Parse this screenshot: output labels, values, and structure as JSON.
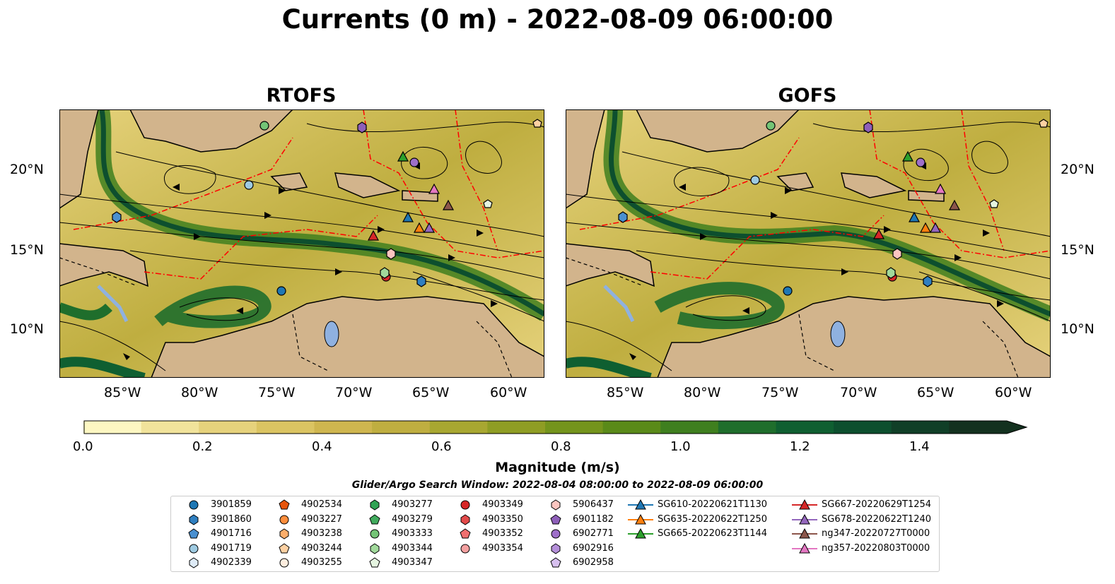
{
  "title": "Currents (0 m) - 2022-08-09 06:00:00",
  "panels": [
    {
      "title": "RTOFS"
    },
    {
      "title": "GOFS"
    }
  ],
  "lon_ticks": [
    "85°W",
    "80°W",
    "75°W",
    "70°W",
    "65°W",
    "60°W"
  ],
  "lat_ticks": [
    "20°N",
    "15°N",
    "10°N"
  ],
  "colorbar": {
    "label": "Magnitude (m/s)",
    "ticks": [
      "0.0",
      "0.2",
      "0.4",
      "0.6",
      "0.8",
      "1.0",
      "1.2",
      "1.4"
    ],
    "colors": [
      "#fdf7c2",
      "#f1e39b",
      "#e6d27c",
      "#dbc462",
      "#cfb64f",
      "#bfae40",
      "#a8a731",
      "#8f9d24",
      "#74941c",
      "#5a8a19",
      "#3f7f1f",
      "#1f6e2c",
      "#0f5f31",
      "#0d4f2e",
      "#103f27",
      "#13311f"
    ]
  },
  "search_window": "Glider/Argo Search Window: 2022-08-04 08:00:00 to 2022-08-09 06:00:00",
  "legend": {
    "columns": [
      [
        {
          "label": "3901859",
          "marker": "circle",
          "color": "#1f77b4"
        },
        {
          "label": "3901860",
          "marker": "hexagon",
          "color": "#2f7fc0"
        },
        {
          "label": "4901716",
          "marker": "pentagon",
          "color": "#4a90d0"
        },
        {
          "label": "4901719",
          "marker": "circle",
          "color": "#9ecae1"
        },
        {
          "label": "4902339",
          "marker": "hexagon",
          "color": "#deebf7"
        }
      ],
      [
        {
          "label": "4902534",
          "marker": "pentagon",
          "color": "#e6550d"
        },
        {
          "label": "4903227",
          "marker": "circle",
          "color": "#fd8d3c"
        },
        {
          "label": "4903238",
          "marker": "hexagon",
          "color": "#fdae6b"
        },
        {
          "label": "4903244",
          "marker": "pentagon",
          "color": "#fdd0a2"
        },
        {
          "label": "4903255",
          "marker": "circle",
          "color": "#feedde"
        }
      ],
      [
        {
          "label": "4903277",
          "marker": "hexagon",
          "color": "#31a354"
        },
        {
          "label": "4903279",
          "marker": "pentagon",
          "color": "#41ab5d"
        },
        {
          "label": "4903333",
          "marker": "circle",
          "color": "#74c476"
        },
        {
          "label": "4903344",
          "marker": "hexagon",
          "color": "#a1d99b"
        },
        {
          "label": "4903347",
          "marker": "pentagon",
          "color": "#e5f5e0"
        }
      ],
      [
        {
          "label": "4903349",
          "marker": "circle",
          "color": "#d62728"
        },
        {
          "label": "4903350",
          "marker": "hexagon",
          "color": "#e34a4a"
        },
        {
          "label": "4903352",
          "marker": "pentagon",
          "color": "#f07070"
        },
        {
          "label": "4903354",
          "marker": "circle",
          "color": "#f4a0a0"
        }
      ],
      [
        {
          "label": "5906437",
          "marker": "hexagon",
          "color": "#fcc5c0"
        },
        {
          "label": "6901182",
          "marker": "pentagon",
          "color": "#8e5fb9"
        },
        {
          "label": "6902771",
          "marker": "circle",
          "color": "#9e6fc9"
        },
        {
          "label": "6902916",
          "marker": "hexagon",
          "color": "#b48fd9"
        },
        {
          "label": "6902958",
          "marker": "pentagon",
          "color": "#d7c0ef"
        }
      ],
      [
        {
          "label": "SG610-20220621T1130",
          "marker": "triangle",
          "color": "#1f77b4"
        },
        {
          "label": "SG635-20220622T1250",
          "marker": "triangle",
          "color": "#ff7f0e"
        },
        {
          "label": "SG665-20220623T1144",
          "marker": "triangle",
          "color": "#2ca02c"
        }
      ],
      [
        {
          "label": "SG667-20220629T1254",
          "marker": "triangle",
          "color": "#d62728"
        },
        {
          "label": "SG678-20220622T1240",
          "marker": "triangle",
          "color": "#9467bd"
        },
        {
          "label": "ng347-20220727T0000",
          "marker": "triangle",
          "color": "#8c564b"
        },
        {
          "label": "ng357-20220803T0000",
          "marker": "triangle",
          "color": "#e377c2"
        }
      ]
    ]
  },
  "colors": {
    "land": "#d2b48c",
    "eez_line": "#ff0000",
    "streamline": "#000000",
    "lake": "#8fb1e0"
  }
}
